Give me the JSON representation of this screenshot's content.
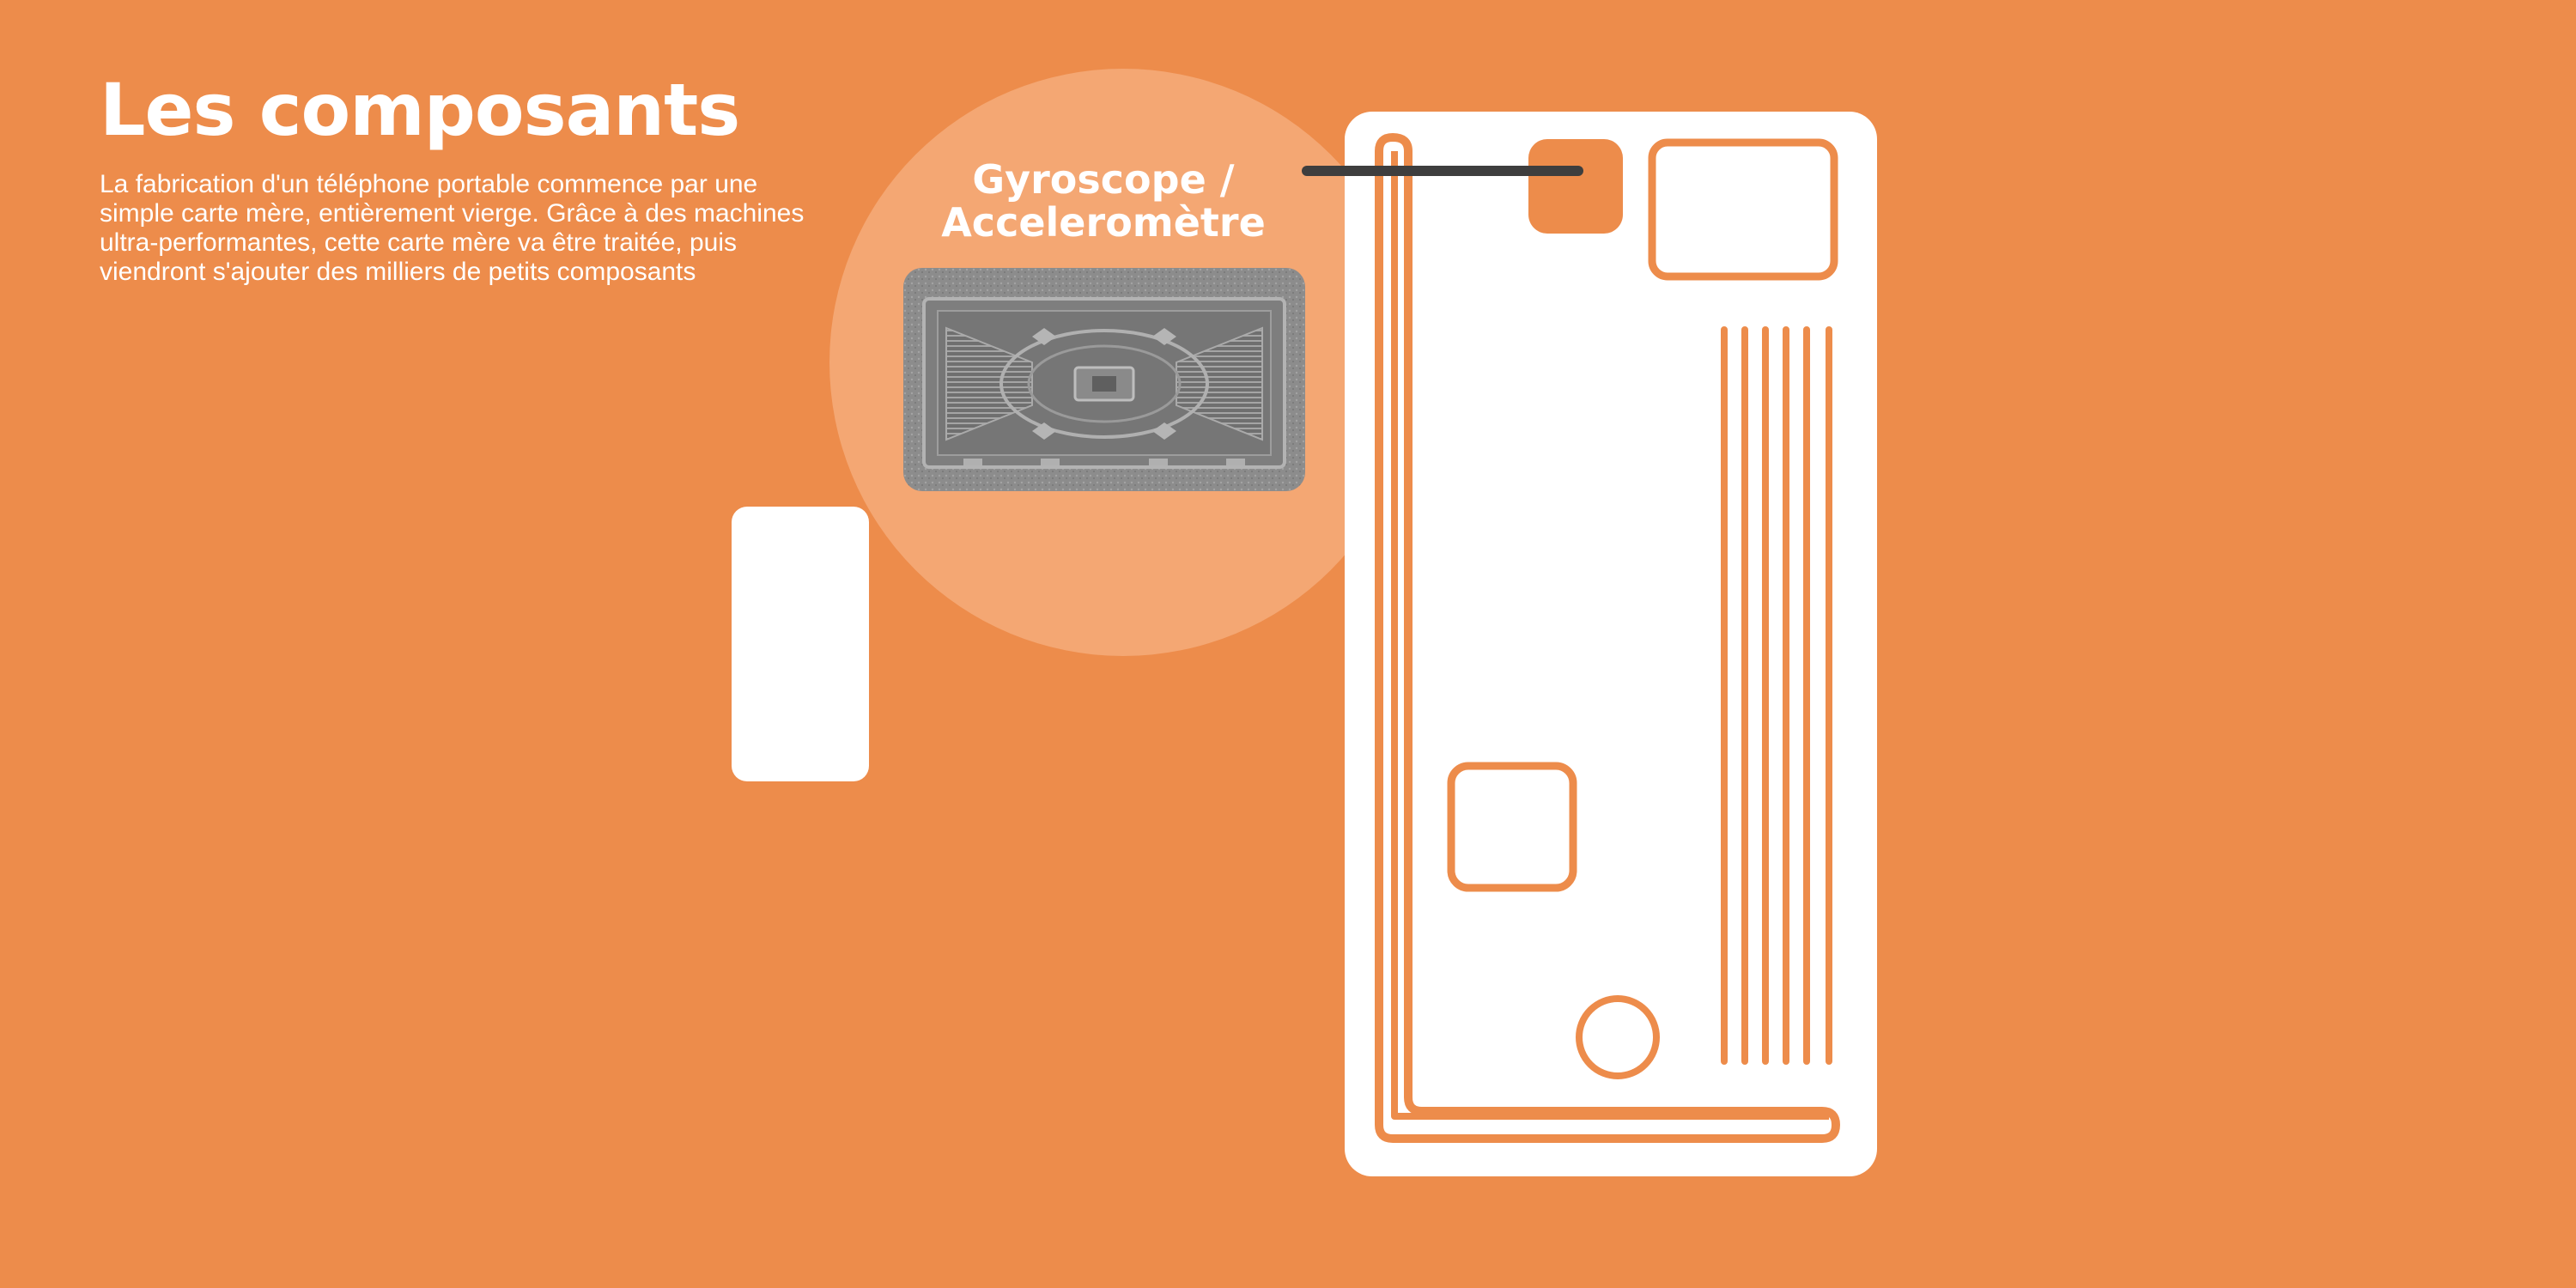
{
  "heading": {
    "title": "Les composants",
    "description": "La fabrication d'un téléphone portable commence par une simple carte mère, entièrement vierge. Grâce à des machines ultra-performantes, cette carte mère va être traitée, puis viendront s'ajouter des milliers de petits composants"
  },
  "zoom": {
    "title_line1": "Gyroscope /",
    "title_line2": "Acceleromètre",
    "image": "gyroscope-accelerometer-chip-micrograph"
  },
  "colors": {
    "background": "#ED8C4B",
    "circle": "#F4A773",
    "board": "#FFFFFF",
    "pointer_line": "#3E3E3E",
    "highlighted_component": "#ED8C4B"
  }
}
